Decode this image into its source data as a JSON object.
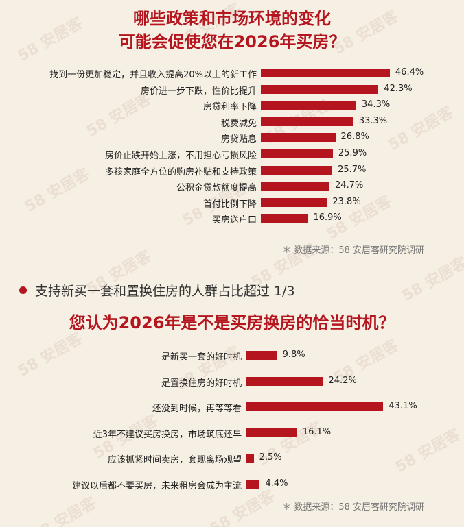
{
  "watermark": "58 安居客",
  "section1": {
    "title_line1": "哪些政策和市场环境的变化",
    "title_line2": "可能会促使您在2026年买房？",
    "source": "＊ 数据来源：58 安居客研究院调研"
  },
  "section2": {
    "subheading": "支持新买一套和置换住房的人群占比超过 1/3",
    "title": "您认为2026年是不是买房换房的恰当时机？",
    "source": "＊ 数据来源：58 安居客研究院调研"
  },
  "colors": {
    "accent": "#b4151e",
    "background": "#f6efe3"
  },
  "chart_data": [
    {
      "type": "bar",
      "orientation": "horizontal",
      "title": "哪些政策和市场环境的变化可能会促使您在2026年买房？",
      "categories": [
        "找到一份更加稳定，并且收入提高20%以上的新工作",
        "房价进一步下跌，性价比提升",
        "房贷利率下降",
        "税费减免",
        "房贷贴息",
        "房价止跌开始上涨，不用担心亏损风险",
        "多孩家庭全方位的购房补贴和支持政策",
        "公积金贷款额度提高",
        "首付比例下降",
        "买房送户口"
      ],
      "values": [
        46.4,
        42.3,
        34.3,
        33.3,
        26.8,
        25.9,
        25.7,
        24.7,
        23.8,
        16.9
      ],
      "value_labels": [
        "46.4%",
        "42.3%",
        "34.3%",
        "33.3%",
        "26.8%",
        "25.9%",
        "25.7%",
        "24.7%",
        "23.8%",
        "16.9%"
      ],
      "unit": "%"
    },
    {
      "type": "bar",
      "orientation": "horizontal",
      "title": "您认为2026年是不是买房换房的恰当时机？",
      "categories": [
        "是新买一套的好时机",
        "是置换住房的好时机",
        "还没到时候，再等等看",
        "近3年不建议买房换房，市场筑底还早",
        "应该抓紧时间卖房，套现离场观望",
        "建议以后都不要买房，未来租房会成为主流"
      ],
      "values": [
        9.8,
        24.2,
        43.1,
        16.1,
        2.5,
        4.4
      ],
      "value_labels": [
        "9.8%",
        "24.2%",
        "43.1%",
        "16.1%",
        "2.5%",
        "4.4%"
      ],
      "unit": "%"
    }
  ]
}
